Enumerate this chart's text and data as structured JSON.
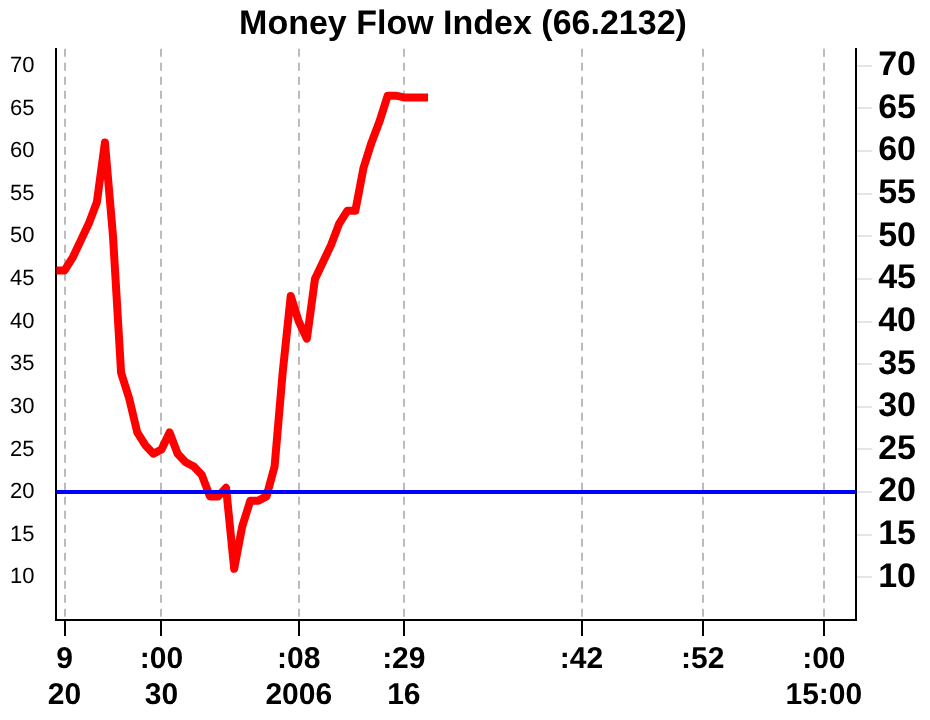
{
  "chart_data": {
    "type": "line",
    "title": "Money Flow Index (66.2132)",
    "categories": [
      null,
      "9\n20",
      null,
      null,
      null,
      null,
      null,
      null,
      null,
      null,
      null,
      null,
      null,
      ":00\n30",
      null,
      null,
      null,
      null,
      null,
      null,
      null,
      null,
      null,
      null,
      null,
      null,
      null,
      null,
      null,
      null,
      ":08\n2006",
      null,
      null,
      null,
      null,
      null,
      null,
      null,
      null,
      null,
      null,
      null,
      null,
      ":29\n16",
      null,
      null,
      null,
      null,
      null,
      null,
      null,
      null,
      null,
      null,
      null,
      null,
      null,
      null,
      null,
      null,
      null,
      null,
      null,
      null,
      null,
      ":42",
      null,
      null,
      null,
      null,
      null,
      null,
      null,
      null,
      null,
      null,
      null,
      null,
      null,
      null,
      ":52",
      null,
      null,
      null,
      null,
      null,
      null,
      null,
      null,
      null,
      null,
      null,
      null,
      null,
      null,
      ":00\n15:00",
      null,
      null,
      null,
      null
    ],
    "series": [
      {
        "color": "#ff0000",
        "values": [
          46,
          46,
          47.5,
          49.5,
          51.5,
          54,
          61,
          50,
          34,
          31,
          27,
          25.5,
          24.5,
          25,
          27,
          24.5,
          23.5,
          23,
          22,
          19.5,
          19.5,
          20.5,
          11,
          16,
          19,
          19,
          19.5,
          23,
          34,
          43,
          40,
          38,
          45,
          47,
          49,
          51.5,
          53,
          53,
          58,
          61,
          63.5,
          66.5,
          66.5,
          66.3,
          66.3,
          66.3,
          66.3,
          null,
          null,
          null,
          null,
          null,
          null,
          null,
          null,
          null,
          null,
          null,
          null,
          null,
          null,
          null,
          null,
          null,
          null,
          null,
          null,
          null,
          null,
          null,
          null,
          null,
          null,
          null,
          null,
          null,
          null,
          null,
          null,
          null,
          null,
          null,
          null,
          null,
          null,
          null,
          null,
          null,
          null,
          null,
          null,
          null,
          null,
          null,
          null,
          null,
          null,
          null,
          null,
          null
        ]
      }
    ],
    "ylim": [
      5,
      72
    ],
    "yticks": [
      10,
      15,
      20,
      25,
      30,
      35,
      40,
      45,
      50,
      55,
      60,
      65,
      70
    ],
    "y2lim": [
      5,
      72
    ],
    "y2ticks": [
      10,
      15,
      20,
      25,
      30,
      35,
      40,
      45,
      50,
      55,
      60,
      65,
      70
    ],
    "ref_lines": [
      {
        "axis": "y",
        "value": 20,
        "color": "#0000ff"
      }
    ],
    "grid": "x",
    "legend": false,
    "marker": "none",
    "line_style": "solid"
  }
}
